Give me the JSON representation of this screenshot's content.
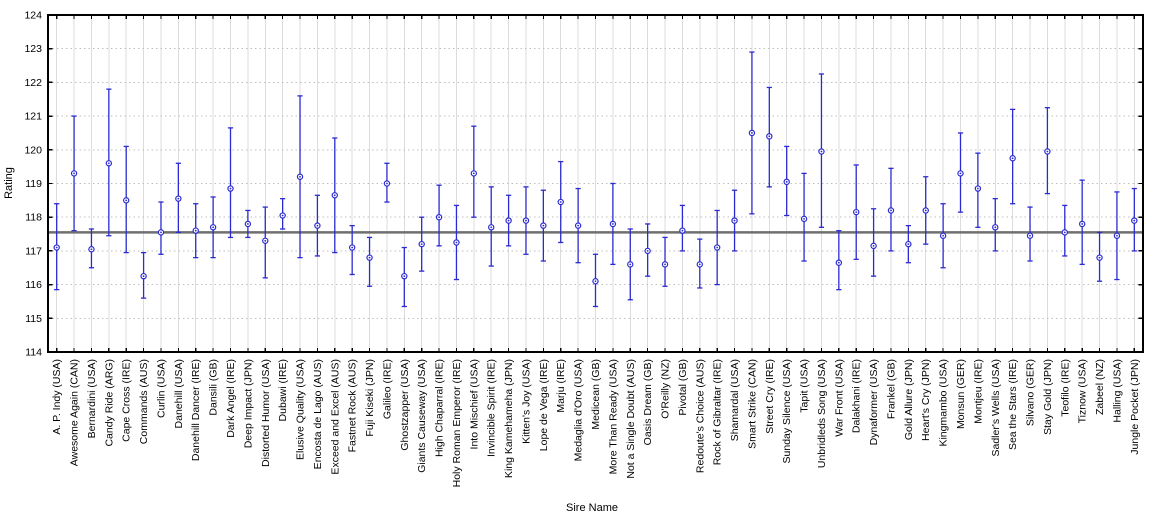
{
  "chart_data": {
    "type": "scatter",
    "subtype": "interval-plot-with-error-bars",
    "title": "",
    "xlabel": "Sire Name",
    "ylabel": "Rating",
    "ylim": [
      114,
      124
    ],
    "y_ticks": [
      114,
      115,
      116,
      117,
      118,
      119,
      120,
      121,
      122,
      123,
      124
    ],
    "legend_position": "none",
    "grid": {
      "horizontal": "dotted-light-gray",
      "vertical": "light-gray-every-category"
    },
    "reference_line_y": 117.55,
    "points": [
      {
        "sire": "A. P. Indy (USA)",
        "rating": 117.1,
        "low": 115.85,
        "high": 118.4
      },
      {
        "sire": "Awesome Again (CAN)",
        "rating": 119.3,
        "low": 117.6,
        "high": 121.0
      },
      {
        "sire": "Bernardini (USA)",
        "rating": 117.05,
        "low": 116.5,
        "high": 117.65
      },
      {
        "sire": "Candy Ride (ARG)",
        "rating": 119.6,
        "low": 117.45,
        "high": 121.8
      },
      {
        "sire": "Cape Cross (IRE)",
        "rating": 118.5,
        "low": 116.95,
        "high": 120.1
      },
      {
        "sire": "Commands (AUS)",
        "rating": 116.25,
        "low": 115.6,
        "high": 116.95
      },
      {
        "sire": "Curlin (USA)",
        "rating": 117.55,
        "low": 116.9,
        "high": 118.45
      },
      {
        "sire": "Danehill (USA)",
        "rating": 118.55,
        "low": 117.55,
        "high": 119.6
      },
      {
        "sire": "Danehill Dancer (IRE)",
        "rating": 117.6,
        "low": 116.8,
        "high": 118.4
      },
      {
        "sire": "Dansili (GB)",
        "rating": 117.7,
        "low": 116.8,
        "high": 118.6
      },
      {
        "sire": "Dark Angel (IRE)",
        "rating": 118.85,
        "low": 117.4,
        "high": 120.65
      },
      {
        "sire": "Deep Impact (JPN)",
        "rating": 117.8,
        "low": 117.4,
        "high": 118.2
      },
      {
        "sire": "Distorted Humor (USA)",
        "rating": 117.3,
        "low": 116.2,
        "high": 118.3
      },
      {
        "sire": "Dubawi (IRE)",
        "rating": 118.05,
        "low": 117.65,
        "high": 118.55
      },
      {
        "sire": "Elusive Quality (USA)",
        "rating": 119.2,
        "low": 116.8,
        "high": 121.6
      },
      {
        "sire": "Encosta de Lago (AUS)",
        "rating": 117.75,
        "low": 116.85,
        "high": 118.65
      },
      {
        "sire": "Exceed and Excel (AUS)",
        "rating": 118.65,
        "low": 116.95,
        "high": 120.35
      },
      {
        "sire": "Fastnet Rock (AUS)",
        "rating": 117.1,
        "low": 116.3,
        "high": 117.75
      },
      {
        "sire": "Fuji Kiseki (JPN)",
        "rating": 116.8,
        "low": 115.95,
        "high": 117.4
      },
      {
        "sire": "Galileo (IRE)",
        "rating": 119.0,
        "low": 118.45,
        "high": 119.6
      },
      {
        "sire": "Ghostzapper (USA)",
        "rating": 116.25,
        "low": 115.35,
        "high": 117.1
      },
      {
        "sire": "Giants Causeway (USA)",
        "rating": 117.2,
        "low": 116.4,
        "high": 118.0
      },
      {
        "sire": "High Chaparral (IRE)",
        "rating": 118.0,
        "low": 117.15,
        "high": 118.95
      },
      {
        "sire": "Holy Roman Emperor (IRE)",
        "rating": 117.25,
        "low": 116.15,
        "high": 118.35
      },
      {
        "sire": "Into Mischief (USA)",
        "rating": 119.3,
        "low": 118.0,
        "high": 120.7
      },
      {
        "sire": "Invincible Spirit (IRE)",
        "rating": 117.7,
        "low": 116.55,
        "high": 118.9
      },
      {
        "sire": "King Kamehameha (JPN)",
        "rating": 117.9,
        "low": 117.15,
        "high": 118.65
      },
      {
        "sire": "Kitten's Joy (USA)",
        "rating": 117.9,
        "low": 116.9,
        "high": 118.9
      },
      {
        "sire": "Lope de Vega (IRE)",
        "rating": 117.75,
        "low": 116.7,
        "high": 118.8
      },
      {
        "sire": "Marju (IRE)",
        "rating": 118.45,
        "low": 117.25,
        "high": 119.65
      },
      {
        "sire": "Medaglia d'Oro (USA)",
        "rating": 117.75,
        "low": 116.65,
        "high": 118.85
      },
      {
        "sire": "Medicean (GB)",
        "rating": 116.1,
        "low": 115.35,
        "high": 116.9
      },
      {
        "sire": "More Than Ready (USA)",
        "rating": 117.8,
        "low": 116.6,
        "high": 119.0
      },
      {
        "sire": "Not a Single Doubt (AUS)",
        "rating": 116.6,
        "low": 115.55,
        "high": 117.65
      },
      {
        "sire": "Oasis Dream (GB)",
        "rating": 117.0,
        "low": 116.25,
        "high": 117.8
      },
      {
        "sire": "O'Reilly (NZ)",
        "rating": 116.6,
        "low": 115.95,
        "high": 117.4
      },
      {
        "sire": "Pivotal (GB)",
        "rating": 117.6,
        "low": 117.0,
        "high": 118.35
      },
      {
        "sire": "Redoute's Choice (AUS)",
        "rating": 116.6,
        "low": 115.9,
        "high": 117.35
      },
      {
        "sire": "Rock of Gibraltar (IRE)",
        "rating": 117.1,
        "low": 116.0,
        "high": 118.2
      },
      {
        "sire": "Shamardal (USA)",
        "rating": 117.9,
        "low": 117.0,
        "high": 118.8
      },
      {
        "sire": "Smart Strike (CAN)",
        "rating": 120.5,
        "low": 118.1,
        "high": 122.9
      },
      {
        "sire": "Street Cry (IRE)",
        "rating": 120.4,
        "low": 118.9,
        "high": 121.85
      },
      {
        "sire": "Sunday Silence (USA)",
        "rating": 119.05,
        "low": 118.05,
        "high": 120.1
      },
      {
        "sire": "Tapit (USA)",
        "rating": 117.95,
        "low": 116.7,
        "high": 119.3
      },
      {
        "sire": "Unbridleds Song (USA)",
        "rating": 119.95,
        "low": 117.7,
        "high": 122.25
      },
      {
        "sire": "War Front (USA)",
        "rating": 116.65,
        "low": 115.85,
        "high": 117.6
      },
      {
        "sire": "Dalakhani (IRE)",
        "rating": 118.15,
        "low": 116.75,
        "high": 119.55
      },
      {
        "sire": "Dynaformer (USA)",
        "rating": 117.15,
        "low": 116.25,
        "high": 118.25
      },
      {
        "sire": "Frankel (GB)",
        "rating": 118.2,
        "low": 117.0,
        "high": 119.45
      },
      {
        "sire": "Gold Allure (JPN)",
        "rating": 117.2,
        "low": 116.65,
        "high": 117.75
      },
      {
        "sire": "Heart's Cry (JPN)",
        "rating": 118.2,
        "low": 117.2,
        "high": 119.2
      },
      {
        "sire": "Kingmambo (USA)",
        "rating": 117.45,
        "low": 116.5,
        "high": 118.4
      },
      {
        "sire": "Monsun (GER)",
        "rating": 119.3,
        "low": 118.15,
        "high": 120.5
      },
      {
        "sire": "Montjeu (IRE)",
        "rating": 118.85,
        "low": 117.7,
        "high": 119.9
      },
      {
        "sire": "Sadler's Wells (USA)",
        "rating": 117.7,
        "low": 117.0,
        "high": 118.55
      },
      {
        "sire": "Sea the Stars (IRE)",
        "rating": 119.75,
        "low": 118.4,
        "high": 121.2
      },
      {
        "sire": "Silvano (GER)",
        "rating": 117.45,
        "low": 116.7,
        "high": 118.3
      },
      {
        "sire": "Stay Gold (JPN)",
        "rating": 119.95,
        "low": 118.7,
        "high": 121.25
      },
      {
        "sire": "Teofilo (IRE)",
        "rating": 117.55,
        "low": 116.85,
        "high": 118.35
      },
      {
        "sire": "Tiznow (USA)",
        "rating": 117.8,
        "low": 116.6,
        "high": 119.1
      },
      {
        "sire": "Zabeel (NZ)",
        "rating": 116.8,
        "low": 116.1,
        "high": 117.55
      },
      {
        "sire": "Halling (USA)",
        "rating": 117.45,
        "low": 116.15,
        "high": 118.75
      },
      {
        "sire": "Jungle Pocket (JPN)",
        "rating": 117.9,
        "low": 117.0,
        "high": 118.85
      }
    ]
  },
  "colors": {
    "series_blue": "#2b2bd0",
    "marker_fill": "#ffffff",
    "reference_line": "#6f6f6f",
    "grid_dotted": "#bfbfbf",
    "grid_vertical": "#dcdcdc",
    "axis_frame": "#000000",
    "text": "#000000",
    "background": "#ffffff"
  }
}
